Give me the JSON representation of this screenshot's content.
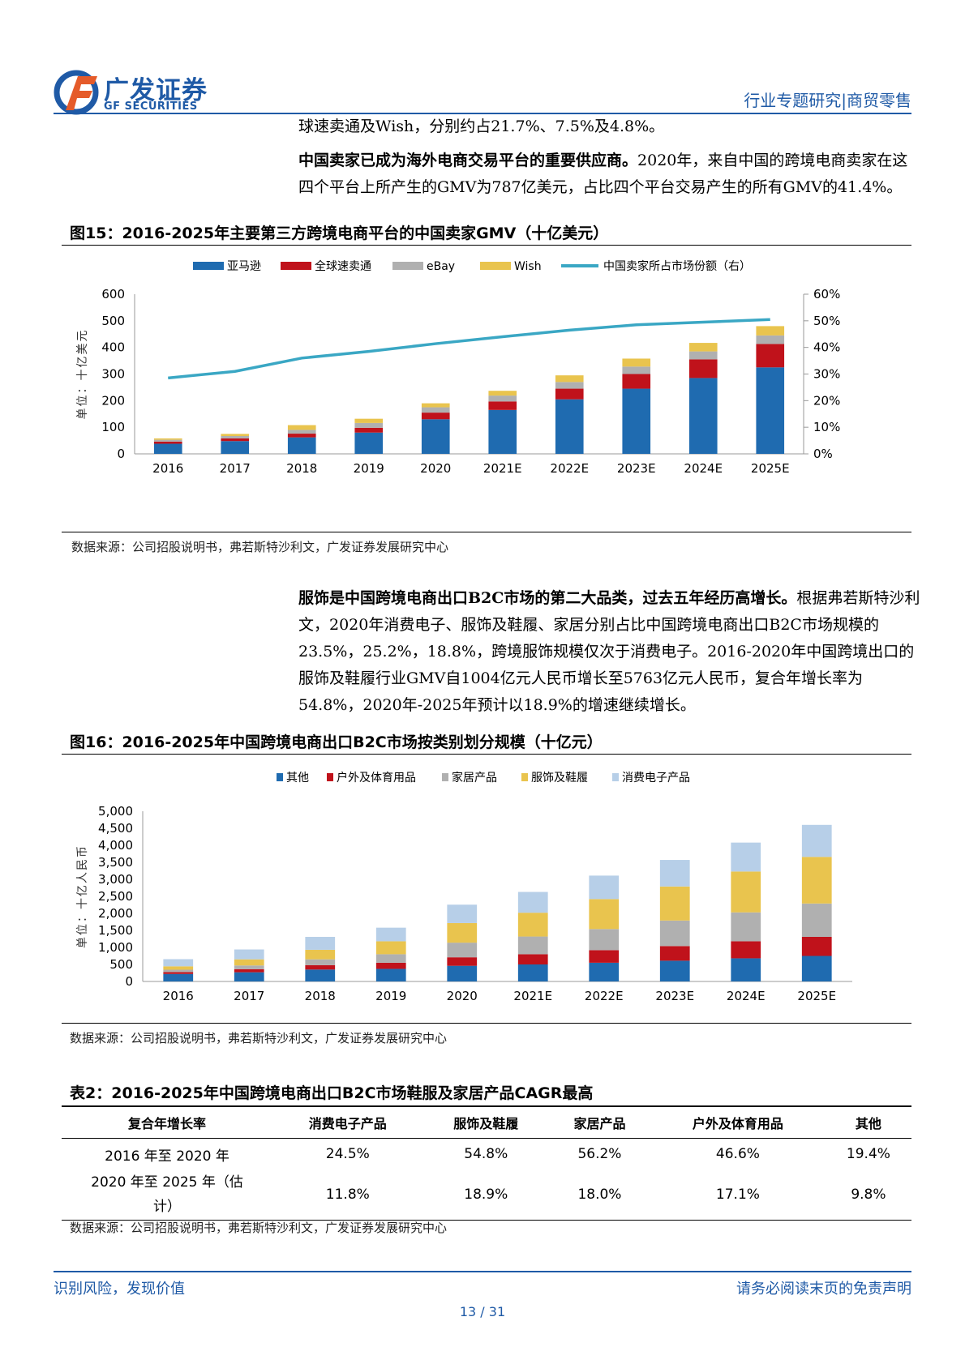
{
  "header": {
    "logo_cn": "广发证券",
    "logo_en": "GF SECURITIES",
    "category": "行业专题研究|商贸零售"
  },
  "para1": {
    "line1": "球速卖通及Wish，分别约占21.7%、7.5%及4.8%。"
  },
  "para2": {
    "bold": "中国卖家已成为海外电商交易平台的重要供应商。",
    "rest": "2020年，来自中国的跨境电商卖家在这四个平台上所产生的GMV为787亿美元，占比四个平台交易产生的所有GMV的41.4%。"
  },
  "fig15": {
    "title": "图15：2016-2025年主要第三方跨境电商平台的中国卖家GMV（十亿美元）",
    "source": "数据来源：公司招股说明书，弗若斯特沙利文，广发证券发展研究中心"
  },
  "para3": {
    "bold": "服饰是中国跨境电商出口B2C市场的第二大品类，过去五年经历高增长。",
    "rest": "根据弗若斯特沙利文，2020年消费电子、服饰及鞋履、家居分别占比中国跨境电商出口B2C市场规模的23.5%，25.2%，18.8%，跨境服饰规模仅次于消费电子。2016-2020年中国跨境出口的服饰及鞋履行业GMV自1004亿元人民币增长至5763亿元人民币，复合年增长率为54.8%，2020年-2025年预计以18.9%的增速继续增长。"
  },
  "fig16": {
    "title": "图16：2016-2025年中国跨境电商出口B2C市场按类别划分规模（十亿元）",
    "source": "数据来源：公司招股说明书，弗若斯特沙利文，广发证券发展研究中心"
  },
  "table2": {
    "title": "表2：2016-2025年中国跨境电商出口B2C市场鞋服及家居产品CAGR最高",
    "headers": [
      "复合年增长率",
      "消费电子产品",
      "服饰及鞋履",
      "家居产品",
      "户外及体育用品",
      "其他"
    ],
    "rows": [
      [
        "2016 年至 2020 年",
        "24.5%",
        "54.8%",
        "56.2%",
        "46.6%",
        "19.4%"
      ],
      [
        "2020 年至 2025 年（估计）",
        "11.8%",
        "18.9%",
        "18.0%",
        "17.1%",
        "9.8%"
      ]
    ],
    "source": "数据来源：公司招股说明书，弗若斯特沙利文，广发证券发展研究中心"
  },
  "footer": {
    "left": "识别风险，发现价值",
    "right": "请务必阅读末页的免责声明",
    "page": "13 / 31"
  },
  "chart_data": [
    {
      "type": "bar",
      "stacked": true,
      "categories": [
        "2016",
        "2017",
        "2018",
        "2019",
        "2020",
        "2021E",
        "2022E",
        "2023E",
        "2024E",
        "2025E"
      ],
      "ylabel": "单位：十亿美元",
      "ylim": [
        0,
        600
      ],
      "yticks": [
        "0",
        "100",
        "200",
        "300",
        "400",
        "500",
        "600"
      ],
      "y2ticks": [
        "0%",
        "10%",
        "20%",
        "30%",
        "40%",
        "50%",
        "60%"
      ],
      "y2lim": [
        0,
        60
      ],
      "legend_position": "top",
      "series": [
        {
          "name": "亚马逊",
          "color": "#1f6bb0",
          "values": [
            38,
            48,
            62,
            80,
            130,
            165,
            205,
            245,
            285,
            325
          ]
        },
        {
          "name": "全球速卖通",
          "color": "#c0121b",
          "values": [
            8,
            10,
            14,
            18,
            25,
            32,
            40,
            55,
            70,
            88
          ]
        },
        {
          "name": "eBay",
          "color": "#b0b0b0",
          "values": [
            7,
            9,
            14,
            18,
            20,
            22,
            25,
            28,
            30,
            32
          ]
        },
        {
          "name": "Wish",
          "color": "#e9c44e",
          "values": [
            5,
            8,
            18,
            16,
            15,
            18,
            25,
            30,
            32,
            35
          ]
        }
      ],
      "line": {
        "name": "中国卖家所占市场份额（右）",
        "color": "#3aa7c4",
        "values": [
          28.5,
          31,
          36,
          38.5,
          41.4,
          44,
          46.5,
          48.5,
          49.5,
          50.5
        ]
      }
    },
    {
      "type": "bar",
      "stacked": true,
      "categories": [
        "2016",
        "2017",
        "2018",
        "2019",
        "2020",
        "2021E",
        "2022E",
        "2023E",
        "2024E",
        "2025E"
      ],
      "ylabel": "单位：十亿人民币",
      "ylim": [
        0,
        5000
      ],
      "yticks": [
        "0",
        "500",
        "1,000",
        "1,500",
        "2,000",
        "2,500",
        "3,000",
        "3,500",
        "4,000",
        "4,500",
        "5,000"
      ],
      "legend_position": "top",
      "series": [
        {
          "name": "其他",
          "color": "#1f6bb0",
          "values": [
            220,
            270,
            350,
            370,
            460,
            500,
            550,
            610,
            680,
            750
          ]
        },
        {
          "name": "户外及体育用品",
          "color": "#c0121b",
          "values": [
            55,
            90,
            130,
            180,
            250,
            300,
            370,
            430,
            500,
            560
          ]
        },
        {
          "name": "家居产品",
          "color": "#b0b0b0",
          "values": [
            70,
            110,
            170,
            250,
            430,
            520,
            620,
            750,
            850,
            980
          ]
        },
        {
          "name": "服饰及鞋履",
          "color": "#e9c44e",
          "values": [
            100,
            180,
            280,
            380,
            576,
            700,
            880,
            1000,
            1200,
            1370
          ]
        },
        {
          "name": "消费电子产品",
          "color": "#b7cfe8",
          "values": [
            210,
            290,
            380,
            400,
            540,
            610,
            690,
            780,
            850,
            940
          ]
        }
      ]
    }
  ]
}
